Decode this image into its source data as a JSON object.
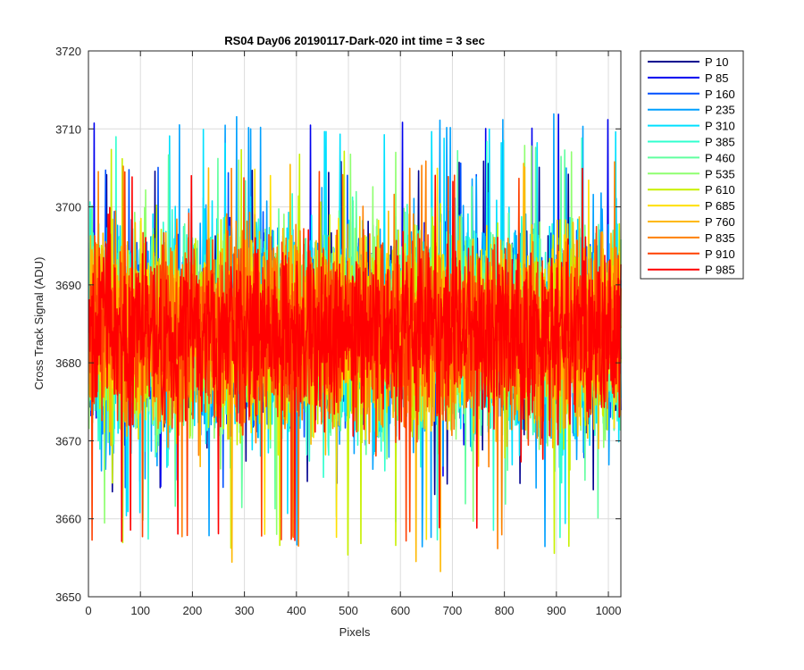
{
  "chart_data": {
    "type": "line",
    "title": "RS04 Day06 20190117-Dark-020 int time = 3 sec",
    "xlabel": "Pixels",
    "ylabel": "Cross Track Signal (ADU)",
    "xlim": [
      0,
      1024
    ],
    "ylim": [
      3650,
      3720
    ],
    "x_ticks": [
      0,
      100,
      200,
      300,
      400,
      500,
      600,
      700,
      800,
      900,
      1000
    ],
    "y_ticks": [
      3650,
      3660,
      3670,
      3680,
      3690,
      3700,
      3710,
      3720
    ],
    "grid": true,
    "legend_position": "outside-top-right",
    "x_range_per_series": [
      1,
      1024
    ],
    "series": [
      {
        "name": "P 10",
        "color": "#00008F",
        "mean": 3684,
        "low": 3663,
        "high": 3706
      },
      {
        "name": "P 85",
        "color": "#0000EF",
        "mean": 3684,
        "low": 3664,
        "high": 3712
      },
      {
        "name": "P 160",
        "color": "#0050FF",
        "mean": 3684,
        "low": 3663,
        "high": 3706
      },
      {
        "name": "P 235",
        "color": "#00A0FF",
        "mean": 3684,
        "low": 3656,
        "high": 3712
      },
      {
        "name": "P 310",
        "color": "#00E0FF",
        "mean": 3684,
        "low": 3659,
        "high": 3710
      },
      {
        "name": "P 385",
        "color": "#30FFCF",
        "mean": 3684,
        "low": 3657,
        "high": 3710
      },
      {
        "name": "P 460",
        "color": "#60FF9F",
        "mean": 3684,
        "low": 3660,
        "high": 3708
      },
      {
        "name": "P 535",
        "color": "#8FFF70",
        "mean": 3684,
        "low": 3658,
        "high": 3708
      },
      {
        "name": "P 610",
        "color": "#C8F000",
        "mean": 3684,
        "low": 3655,
        "high": 3708
      },
      {
        "name": "P 685",
        "color": "#FFE000",
        "mean": 3684,
        "low": 3657,
        "high": 3705
      },
      {
        "name": "P 760",
        "color": "#FFB800",
        "mean": 3684,
        "low": 3653,
        "high": 3706
      },
      {
        "name": "P 835",
        "color": "#FF8000",
        "mean": 3684,
        "low": 3656,
        "high": 3706
      },
      {
        "name": "P 910",
        "color": "#FF4000",
        "mean": 3684,
        "low": 3657,
        "high": 3705
      },
      {
        "name": "P 985",
        "color": "#FF0000",
        "mean": 3684,
        "low": 3657,
        "high": 3705
      }
    ]
  }
}
